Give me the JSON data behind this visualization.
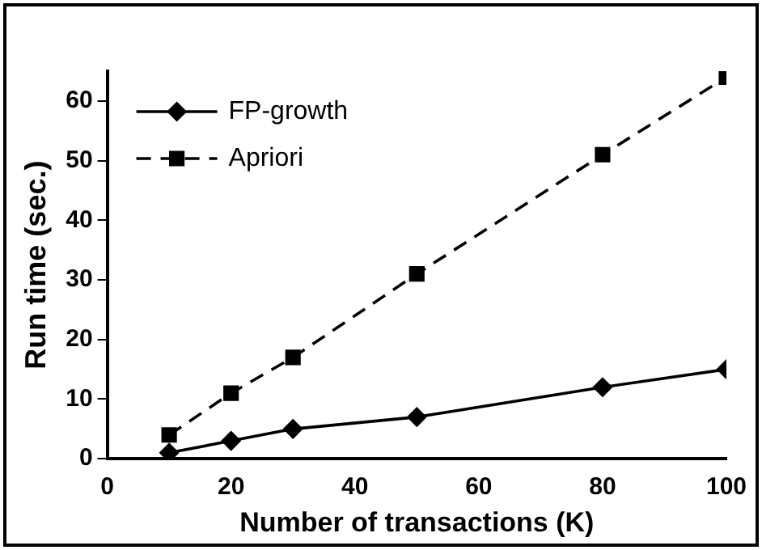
{
  "chart_data": {
    "type": "line",
    "xlabel": "Number of transactions (K)",
    "ylabel": "Run time (sec.)",
    "x": [
      10,
      20,
      30,
      50,
      80,
      100
    ],
    "series": [
      {
        "name": "FP-growth",
        "color": "#000000",
        "values": [
          1,
          3,
          5,
          7,
          12,
          15
        ],
        "marker": "diamond",
        "line_style": "solid"
      },
      {
        "name": "Apriori",
        "color": "#000000",
        "values": [
          4,
          11,
          17,
          31,
          51,
          64
        ],
        "marker": "square",
        "line_style": "dashed"
      }
    ],
    "xlim": [
      0,
      100
    ],
    "xticks": [
      0,
      20,
      40,
      60,
      80,
      100
    ],
    "ylim": [
      0,
      65
    ],
    "yticks": [
      0,
      10,
      20,
      30,
      40,
      50,
      60
    ],
    "grid": false,
    "legend": "top left"
  }
}
